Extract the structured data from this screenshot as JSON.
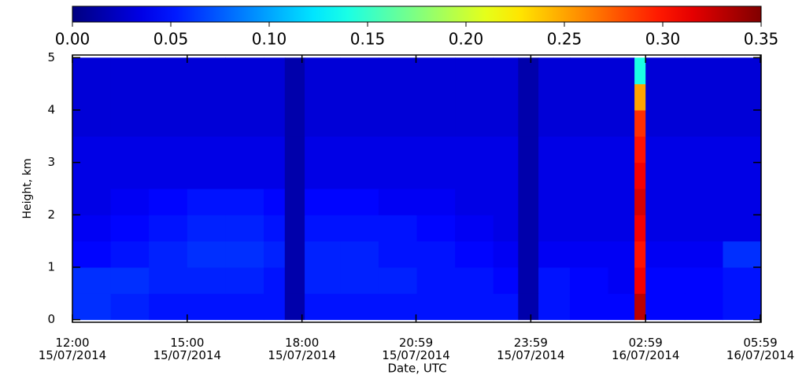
{
  "chart_data": {
    "type": "heatmap",
    "xlabel": "Date, UTC",
    "ylabel": "Height, km",
    "colormap": "jet",
    "zlim": [
      0,
      0.35
    ],
    "zticks": [
      {
        "value": 0,
        "label": "0.00"
      },
      {
        "value": 0.05,
        "label": "0.05"
      },
      {
        "value": 0.1,
        "label": "0.10"
      },
      {
        "value": 0.15,
        "label": "0.15"
      },
      {
        "value": 0.2,
        "label": "0.20"
      },
      {
        "value": 0.25,
        "label": "0.25"
      },
      {
        "value": 0.3,
        "label": "0.30"
      },
      {
        "value": 0.35,
        "label": "0.35"
      }
    ],
    "xlim": [
      0,
      18
    ],
    "xticks": [
      {
        "value": 0,
        "label": "12:00\n15/07/2014"
      },
      {
        "value": 3,
        "label": "15:00\n15/07/2014"
      },
      {
        "value": 6,
        "label": "18:00\n15/07/2014"
      },
      {
        "value": 8.98,
        "label": "20:59\n15/07/2014"
      },
      {
        "value": 11.98,
        "label": "23:59\n15/07/2014"
      },
      {
        "value": 14.98,
        "label": "02:59\n16/07/2014"
      },
      {
        "value": 17.98,
        "label": "05:59\n16/07/2014"
      }
    ],
    "ylim": [
      -0.05,
      5.05
    ],
    "yticks": [
      0,
      1,
      2,
      3,
      4,
      5
    ],
    "x_edges": [
      0,
      1,
      2,
      3,
      4,
      5,
      5.55,
      6.07,
      7,
      8,
      9,
      10,
      11,
      11.65,
      12.18,
      13,
      14,
      14.69,
      14.98,
      16,
      17,
      18
    ],
    "y_edges": [
      0,
      0.5,
      1,
      1.5,
      2,
      2.5,
      3,
      3.5,
      4,
      4.5,
      5
    ],
    "z": [
      [
        0.06,
        0.055,
        0.05,
        0.05,
        0.05,
        0.05,
        0.015,
        0.05,
        0.05,
        0.05,
        0.05,
        0.05,
        0.05,
        0.015,
        0.05,
        0.045,
        0.045,
        0.33,
        0.045,
        0.045,
        0.05
      ],
      [
        0.06,
        0.06,
        0.055,
        0.055,
        0.055,
        0.05,
        0.015,
        0.055,
        0.055,
        0.055,
        0.05,
        0.05,
        0.045,
        0.015,
        0.05,
        0.045,
        0.04,
        0.31,
        0.045,
        0.045,
        0.05
      ],
      [
        0.045,
        0.05,
        0.055,
        0.06,
        0.06,
        0.055,
        0.015,
        0.055,
        0.055,
        0.05,
        0.05,
        0.045,
        0.04,
        0.015,
        0.04,
        0.04,
        0.04,
        0.3,
        0.04,
        0.04,
        0.06
      ],
      [
        0.04,
        0.045,
        0.05,
        0.055,
        0.055,
        0.05,
        0.015,
        0.05,
        0.05,
        0.05,
        0.045,
        0.04,
        0.035,
        0.015,
        0.035,
        0.035,
        0.035,
        0.31,
        0.035,
        0.035,
        0.035
      ],
      [
        0.035,
        0.04,
        0.045,
        0.05,
        0.05,
        0.045,
        0.015,
        0.045,
        0.045,
        0.04,
        0.04,
        0.035,
        0.035,
        0.015,
        0.035,
        0.035,
        0.035,
        0.32,
        0.035,
        0.035,
        0.035
      ],
      [
        0.035,
        0.035,
        0.035,
        0.035,
        0.035,
        0.035,
        0.015,
        0.035,
        0.035,
        0.035,
        0.035,
        0.035,
        0.035,
        0.015,
        0.035,
        0.035,
        0.035,
        0.31,
        0.035,
        0.035,
        0.035
      ],
      [
        0.035,
        0.035,
        0.035,
        0.035,
        0.035,
        0.035,
        0.015,
        0.035,
        0.035,
        0.035,
        0.035,
        0.035,
        0.035,
        0.015,
        0.035,
        0.035,
        0.035,
        0.3,
        0.035,
        0.035,
        0.035
      ],
      [
        0.03,
        0.03,
        0.03,
        0.03,
        0.03,
        0.03,
        0.015,
        0.03,
        0.03,
        0.03,
        0.03,
        0.03,
        0.03,
        0.015,
        0.03,
        0.03,
        0.03,
        0.29,
        0.03,
        0.03,
        0.03
      ],
      [
        0.03,
        0.03,
        0.03,
        0.03,
        0.03,
        0.03,
        0.015,
        0.03,
        0.03,
        0.03,
        0.03,
        0.03,
        0.03,
        0.015,
        0.03,
        0.03,
        0.03,
        0.25,
        0.03,
        0.03,
        0.03
      ],
      [
        0.03,
        0.03,
        0.03,
        0.03,
        0.03,
        0.03,
        0.015,
        0.03,
        0.03,
        0.03,
        0.03,
        0.03,
        0.03,
        0.015,
        0.03,
        0.03,
        0.03,
        0.14,
        0.03,
        0.03,
        0.03
      ]
    ]
  }
}
